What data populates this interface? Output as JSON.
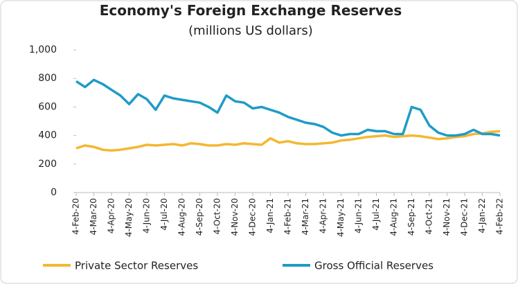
{
  "chart_data": {
    "type": "line",
    "title": "Economy's Foreign Exchange Reserves",
    "subtitle": "(millions US dollars)",
    "categories": [
      "4-Feb-20",
      null,
      "4-Mar-20",
      null,
      "4-Apr-20",
      null,
      "4-May-20",
      null,
      "4-Jun-20",
      null,
      "4-Jul-20",
      null,
      "4-Aug-20",
      null,
      "4-Sep-20",
      null,
      "4-Oct-20",
      null,
      "4-Nov-20",
      null,
      "4-Dec-20",
      null,
      "4-Jan-21",
      null,
      "4-Feb-21",
      null,
      "4-Mar-21",
      null,
      "4-Apr-21",
      null,
      "4-May-21",
      null,
      "4-Jun-21",
      null,
      "4-Jul-21",
      null,
      "4-Aug-21",
      null,
      "4-Sep-21",
      null,
      "4-Oct-21",
      null,
      "4-Nov-21",
      null,
      "4-Dec-21",
      null,
      "4-Jan-22",
      null,
      "4-Feb-22"
    ],
    "series": [
      {
        "name": "Private Sector Reserves",
        "color": "#f4b731",
        "values": [
          310,
          330,
          320,
          300,
          295,
          300,
          310,
          320,
          335,
          330,
          335,
          340,
          330,
          345,
          340,
          330,
          330,
          340,
          335,
          345,
          340,
          335,
          380,
          350,
          360,
          345,
          340,
          340,
          345,
          350,
          365,
          370,
          380,
          390,
          395,
          400,
          390,
          395,
          400,
          395,
          385,
          375,
          380,
          390,
          395,
          410,
          415,
          425,
          430
        ]
      },
      {
        "name": "Gross Official Reserves",
        "color": "#1e9bc8",
        "values": [
          780,
          740,
          790,
          760,
          720,
          680,
          620,
          690,
          655,
          580,
          680,
          660,
          650,
          640,
          630,
          600,
          560,
          680,
          640,
          630,
          590,
          600,
          580,
          560,
          530,
          510,
          490,
          480,
          460,
          420,
          400,
          410,
          410,
          440,
          430,
          430,
          410,
          410,
          600,
          580,
          470,
          420,
          400,
          400,
          410,
          440,
          410,
          410,
          400
        ]
      }
    ],
    "ylim": [
      0,
      1000
    ],
    "yticks": [
      0,
      200,
      400,
      600,
      {
        "value": 800,
        "label": "800"
      },
      {
        "value": 1000,
        "label": "1,000"
      }
    ],
    "grid": false,
    "legend": "bottom"
  }
}
